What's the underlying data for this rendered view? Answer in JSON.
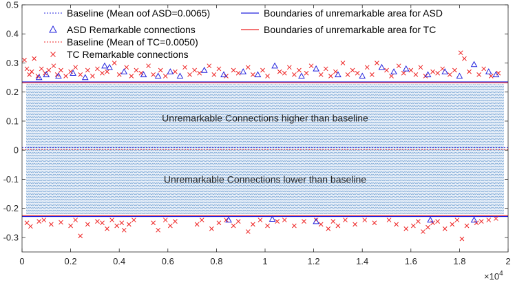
{
  "chart_data": {
    "type": "scatter",
    "title": "",
    "xlabel": "",
    "ylabel": "",
    "xlim": [
      0,
      20000
    ],
    "ylim": [
      -0.35,
      0.5
    ],
    "x_ticks": [
      0,
      2000,
      4000,
      6000,
      8000,
      10000,
      12000,
      14000,
      16000,
      18000,
      20000
    ],
    "x_tick_labels": [
      "0",
      "0.2",
      "0.4",
      "0.6",
      "0.8",
      "1",
      "1.2",
      "1.4",
      "1.6",
      "1.8",
      "2"
    ],
    "x_multiplier_base": "×10",
    "x_multiplier_exp": "4",
    "y_ticks": [
      -0.3,
      -0.2,
      -0.1,
      0,
      0.1,
      0.2,
      0.3,
      0.4,
      0.5
    ],
    "y_tick_labels": [
      "-0.3",
      "-0.2",
      "-0.1",
      "0",
      "0.1",
      "0.2",
      "0.3",
      "0.4",
      "0.5"
    ],
    "grid": false,
    "legend_position": "top-left",
    "colors": {
      "asd": "#2222dd",
      "tc": "#ee2222",
      "fill": "#5b9bd5"
    },
    "legend": [
      {
        "label": "Baseline (Mean oof ASD=0.0065)",
        "kind": "dashed-line",
        "color": "#2222dd"
      },
      {
        "label": "ASD Remarkable connections",
        "kind": "triangle",
        "color": "#2222dd"
      },
      {
        "label": "Baseline (Mean of TC=0.0050)",
        "kind": "dashed-line",
        "color": "#ee2222"
      },
      {
        "label": "TC Remarkable connections",
        "kind": "cross",
        "color": "#ee2222"
      },
      {
        "label": "Boundaries of unremarkable area for ASD",
        "kind": "solid-line",
        "color": "#2222dd"
      },
      {
        "label": "Boundaries of unremarkable area for TC",
        "kind": "solid-line",
        "color": "#ee2222"
      }
    ],
    "baselines": {
      "asd": 0.0065,
      "tc": 0.005
    },
    "boundaries": {
      "asd": {
        "upper": 0.235,
        "lower": -0.228
      },
      "tc": {
        "upper": 0.232,
        "lower": -0.225
      }
    },
    "annotations": [
      {
        "text": "Unremarkable Connections higher than baseline",
        "x": 10000,
        "y": 0.11
      },
      {
        "text": "Unremarkable Connections lower than baseline",
        "x": 10000,
        "y": -0.1
      }
    ],
    "series": [
      {
        "name": "ASD Remarkable connections",
        "marker": "triangle",
        "points": [
          [
            700,
            0.25
          ],
          [
            1000,
            0.26
          ],
          [
            1500,
            0.255
          ],
          [
            2100,
            0.265
          ],
          [
            2600,
            0.25
          ],
          [
            3400,
            0.29
          ],
          [
            3600,
            0.285
          ],
          [
            4200,
            0.27
          ],
          [
            5000,
            0.26
          ],
          [
            5600,
            0.255
          ],
          [
            6100,
            0.27
          ],
          [
            6500,
            0.255
          ],
          [
            7500,
            0.275
          ],
          [
            8300,
            0.26
          ],
          [
            9100,
            0.27
          ],
          [
            9700,
            0.26
          ],
          [
            10400,
            0.29
          ],
          [
            11500,
            0.255
          ],
          [
            12100,
            0.28
          ],
          [
            13000,
            0.26
          ],
          [
            14000,
            0.255
          ],
          [
            14800,
            0.285
          ],
          [
            15300,
            0.27
          ],
          [
            15800,
            0.28
          ],
          [
            16700,
            0.26
          ],
          [
            17400,
            0.27
          ],
          [
            18000,
            0.255
          ],
          [
            18600,
            0.295
          ],
          [
            19200,
            0.27
          ],
          [
            19500,
            0.26
          ],
          [
            8500,
            -0.24
          ],
          [
            10300,
            -0.237
          ],
          [
            12100,
            -0.245
          ],
          [
            16800,
            -0.24
          ],
          [
            18600,
            -0.24
          ]
        ]
      },
      {
        "name": "TC Remarkable connections",
        "marker": "cross",
        "points": [
          [
            100,
            0.31
          ],
          [
            200,
            0.28
          ],
          [
            300,
            0.26
          ],
          [
            400,
            0.27
          ],
          [
            500,
            0.315
          ],
          [
            650,
            0.255
          ],
          [
            800,
            0.28
          ],
          [
            950,
            0.265
          ],
          [
            1100,
            0.275
          ],
          [
            1300,
            0.29
          ],
          [
            1450,
            0.26
          ],
          [
            1600,
            0.275
          ],
          [
            1800,
            0.255
          ],
          [
            2000,
            0.27
          ],
          [
            2200,
            0.285
          ],
          [
            2400,
            0.26
          ],
          [
            2700,
            0.275
          ],
          [
            2900,
            0.255
          ],
          [
            3100,
            0.28
          ],
          [
            3300,
            0.265
          ],
          [
            3500,
            0.27
          ],
          [
            3800,
            0.3
          ],
          [
            4000,
            0.26
          ],
          [
            4300,
            0.285
          ],
          [
            4500,
            0.255
          ],
          [
            4700,
            0.275
          ],
          [
            4900,
            0.265
          ],
          [
            5200,
            0.29
          ],
          [
            5400,
            0.26
          ],
          [
            5700,
            0.275
          ],
          [
            5900,
            0.255
          ],
          [
            6300,
            0.27
          ],
          [
            6700,
            0.285
          ],
          [
            6900,
            0.26
          ],
          [
            7100,
            0.275
          ],
          [
            7300,
            0.265
          ],
          [
            7700,
            0.29
          ],
          [
            7900,
            0.26
          ],
          [
            8100,
            0.28
          ],
          [
            8400,
            0.255
          ],
          [
            8700,
            0.275
          ],
          [
            8900,
            0.265
          ],
          [
            9300,
            0.285
          ],
          [
            9500,
            0.26
          ],
          [
            9900,
            0.275
          ],
          [
            10100,
            0.255
          ],
          [
            10600,
            0.27
          ],
          [
            10800,
            0.265
          ],
          [
            11000,
            0.285
          ],
          [
            11200,
            0.26
          ],
          [
            11400,
            0.275
          ],
          [
            11700,
            0.265
          ],
          [
            11900,
            0.29
          ],
          [
            12300,
            0.26
          ],
          [
            12500,
            0.28
          ],
          [
            12700,
            0.255
          ],
          [
            12900,
            0.27
          ],
          [
            13200,
            0.3
          ],
          [
            13400,
            0.26
          ],
          [
            13600,
            0.275
          ],
          [
            13800,
            0.265
          ],
          [
            14200,
            0.285
          ],
          [
            14400,
            0.26
          ],
          [
            14600,
            0.3
          ],
          [
            15000,
            0.275
          ],
          [
            15200,
            0.255
          ],
          [
            15500,
            0.29
          ],
          [
            15700,
            0.265
          ],
          [
            16000,
            0.275
          ],
          [
            16200,
            0.26
          ],
          [
            16400,
            0.285
          ],
          [
            16600,
            0.255
          ],
          [
            16900,
            0.27
          ],
          [
            17100,
            0.265
          ],
          [
            17300,
            0.28
          ],
          [
            17600,
            0.26
          ],
          [
            17800,
            0.275
          ],
          [
            18050,
            0.335
          ],
          [
            18200,
            0.315
          ],
          [
            18400,
            0.27
          ],
          [
            18800,
            0.26
          ],
          [
            19000,
            0.28
          ],
          [
            19300,
            0.255
          ],
          [
            19600,
            0.265
          ],
          [
            200,
            -0.25
          ],
          [
            350,
            -0.262
          ],
          [
            700,
            -0.245
          ],
          [
            900,
            -0.24
          ],
          [
            1200,
            -0.255
          ],
          [
            1600,
            -0.248
          ],
          [
            2000,
            -0.26
          ],
          [
            2200,
            -0.24
          ],
          [
            2400,
            -0.295
          ],
          [
            2700,
            -0.255
          ],
          [
            3100,
            -0.245
          ],
          [
            3300,
            -0.25
          ],
          [
            3500,
            -0.27
          ],
          [
            3700,
            -0.24
          ],
          [
            3900,
            -0.26
          ],
          [
            4100,
            -0.25
          ],
          [
            4200,
            -0.275
          ],
          [
            4400,
            -0.255
          ],
          [
            4600,
            -0.24
          ],
          [
            5400,
            -0.25
          ],
          [
            5600,
            -0.275
          ],
          [
            5900,
            -0.24
          ],
          [
            6100,
            -0.26
          ],
          [
            6300,
            -0.245
          ],
          [
            7200,
            -0.255
          ],
          [
            7400,
            -0.24
          ],
          [
            7800,
            -0.27
          ],
          [
            8100,
            -0.25
          ],
          [
            8400,
            -0.24
          ],
          [
            8700,
            -0.26
          ],
          [
            8900,
            -0.245
          ],
          [
            9300,
            -0.28
          ],
          [
            9500,
            -0.255
          ],
          [
            9800,
            -0.24
          ],
          [
            10100,
            -0.26
          ],
          [
            10500,
            -0.245
          ],
          [
            10800,
            -0.24
          ],
          [
            11200,
            -0.26
          ],
          [
            11600,
            -0.245
          ],
          [
            12100,
            -0.24
          ],
          [
            12300,
            -0.255
          ],
          [
            12600,
            -0.27
          ],
          [
            12800,
            -0.245
          ],
          [
            13000,
            -0.26
          ],
          [
            13300,
            -0.24
          ],
          [
            13700,
            -0.255
          ],
          [
            14100,
            -0.24
          ],
          [
            14500,
            -0.25
          ],
          [
            15100,
            -0.24
          ],
          [
            15400,
            -0.255
          ],
          [
            15800,
            -0.27
          ],
          [
            16100,
            -0.26
          ],
          [
            16300,
            -0.245
          ],
          [
            16500,
            -0.28
          ],
          [
            16700,
            -0.265
          ],
          [
            16900,
            -0.25
          ],
          [
            17100,
            -0.245
          ],
          [
            17400,
            -0.27
          ],
          [
            17700,
            -0.255
          ],
          [
            17900,
            -0.24
          ],
          [
            18100,
            -0.305
          ],
          [
            18300,
            -0.26
          ],
          [
            18700,
            -0.25
          ],
          [
            18900,
            -0.245
          ],
          [
            19200,
            -0.24
          ],
          [
            19500,
            -0.235
          ]
        ]
      }
    ]
  }
}
